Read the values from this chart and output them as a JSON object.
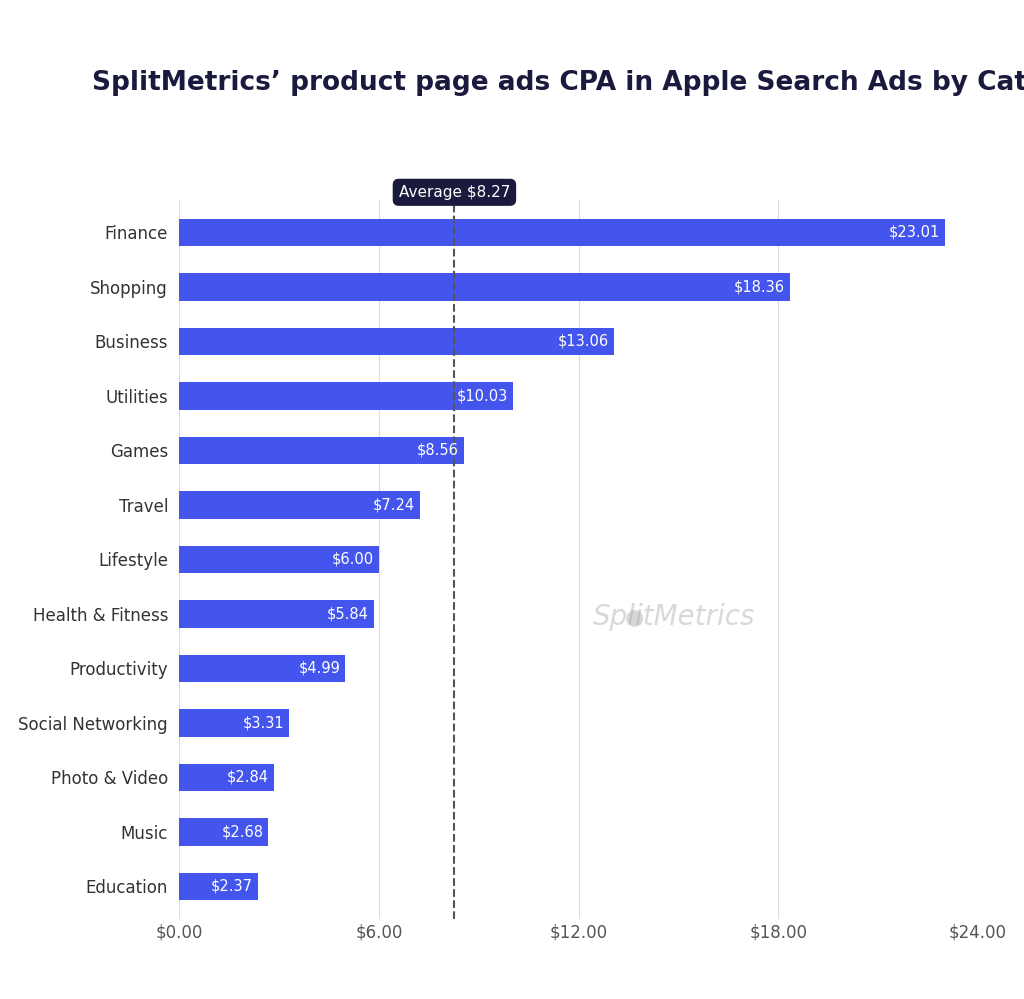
{
  "title": "SplitMetrics’ product page ads CPA in Apple Search Ads by Category",
  "categories": [
    "Finance",
    "Shopping",
    "Business",
    "Utilities",
    "Games",
    "Travel",
    "Lifestyle",
    "Health & Fitness",
    "Productivity",
    "Social Networking",
    "Photo & Video",
    "Music",
    "Education"
  ],
  "values": [
    23.01,
    18.36,
    13.06,
    10.03,
    8.56,
    7.24,
    6.0,
    5.84,
    4.99,
    3.31,
    2.84,
    2.68,
    2.37
  ],
  "bar_color": "#4455EE",
  "average": 8.27,
  "average_label": "Average $8.27",
  "xlim": [
    0,
    24
  ],
  "xticks": [
    0,
    6,
    12,
    18,
    24
  ],
  "xtick_labels": [
    "$0.00",
    "$6.00",
    "$12.00",
    "$18.00",
    "$24.00"
  ],
  "title_fontsize": 19,
  "label_fontsize": 12,
  "value_fontsize": 10.5,
  "background_color": "#ffffff",
  "watermark_text": "SplitMetrics",
  "avg_line_color": "#555555",
  "avg_box_color": "#1a1a3e",
  "avg_text_color": "#ffffff"
}
